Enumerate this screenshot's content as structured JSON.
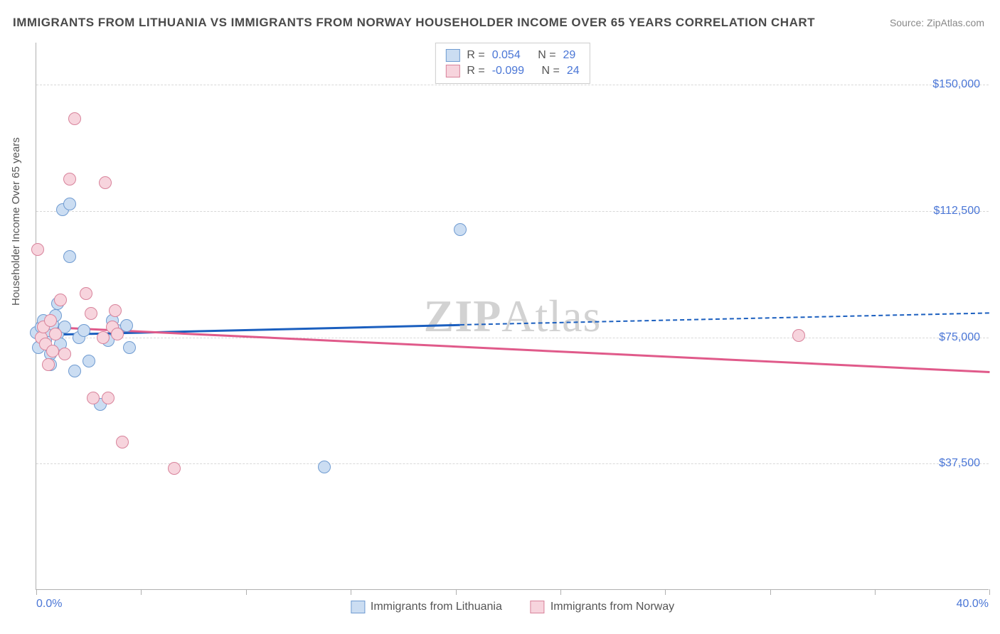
{
  "title": "IMMIGRANTS FROM LITHUANIA VS IMMIGRANTS FROM NORWAY HOUSEHOLDER INCOME OVER 65 YEARS CORRELATION CHART",
  "source_label": "Source:",
  "source_name": "ZipAtlas.com",
  "ylabel": "Householder Income Over 65 years",
  "watermark": "ZIPAtlas",
  "chart": {
    "type": "scatter",
    "xlim": [
      0,
      40
    ],
    "ylim": [
      0,
      162500
    ],
    "x_unit": "%",
    "y_unit": "$",
    "background_color": "#ffffff",
    "grid_color": "#d8d8d8",
    "axis_color": "#b0b0b0",
    "point_radius": 9,
    "xlim_labels": [
      "0.0%",
      "40.0%"
    ],
    "ytick_values": [
      37500,
      75000,
      112500,
      150000
    ],
    "ytick_labels": [
      "$37,500",
      "$75,000",
      "$112,500",
      "$150,000"
    ],
    "xtick_positions": [
      0,
      4.4,
      8.8,
      13.2,
      17.6,
      22.0,
      26.4,
      30.8,
      35.2,
      40.0
    ]
  },
  "series": [
    {
      "id": "lithuania",
      "label": "Immigrants from Lithuania",
      "fill_color": "#cbddf2",
      "stroke_color": "#6f9bd1",
      "trend_color": "#1b5fbf",
      "R": "0.054",
      "N": "29",
      "trend": {
        "x1": 0,
        "y1": 76000,
        "x2": 17.8,
        "y2": 79000,
        "dash_x2": 40,
        "dash_y2": 82500
      },
      "points": [
        [
          0.0,
          76500
        ],
        [
          0.1,
          72000
        ],
        [
          0.2,
          78000
        ],
        [
          0.3,
          80000
        ],
        [
          0.4,
          74000
        ],
        [
          0.5,
          77000
        ],
        [
          0.6,
          70000
        ],
        [
          0.7,
          79000
        ],
        [
          0.8,
          81500
        ],
        [
          0.6,
          67000
        ],
        [
          0.9,
          76000
        ],
        [
          1.0,
          73000
        ],
        [
          1.2,
          78000
        ],
        [
          1.1,
          113000
        ],
        [
          1.4,
          114500
        ],
        [
          1.4,
          99000
        ],
        [
          0.9,
          85000
        ],
        [
          1.6,
          65000
        ],
        [
          1.8,
          75000
        ],
        [
          2.0,
          77000
        ],
        [
          2.2,
          68000
        ],
        [
          2.7,
          55000
        ],
        [
          3.0,
          74000
        ],
        [
          3.2,
          80000
        ],
        [
          3.4,
          77000
        ],
        [
          3.8,
          78500
        ],
        [
          3.9,
          72000
        ],
        [
          17.8,
          107000
        ],
        [
          12.1,
          36500
        ]
      ]
    },
    {
      "id": "norway",
      "label": "Immigrants from Norway",
      "fill_color": "#f7d4dd",
      "stroke_color": "#d8839b",
      "trend_color": "#e05a8a",
      "R": "-0.099",
      "N": "24",
      "trend": {
        "x1": 0,
        "y1": 78500,
        "x2": 40,
        "y2": 65000
      },
      "points": [
        [
          0.05,
          101000
        ],
        [
          0.2,
          75000
        ],
        [
          0.3,
          78000
        ],
        [
          0.4,
          73000
        ],
        [
          0.5,
          67000
        ],
        [
          0.6,
          80000
        ],
        [
          0.7,
          71000
        ],
        [
          0.8,
          76000
        ],
        [
          1.0,
          86000
        ],
        [
          1.2,
          70000
        ],
        [
          1.4,
          122000
        ],
        [
          1.6,
          140000
        ],
        [
          2.1,
          88000
        ],
        [
          2.3,
          82000
        ],
        [
          2.4,
          57000
        ],
        [
          2.8,
          75000
        ],
        [
          2.9,
          121000
        ],
        [
          3.0,
          57000
        ],
        [
          3.2,
          78000
        ],
        [
          3.3,
          83000
        ],
        [
          3.4,
          76000
        ],
        [
          3.6,
          44000
        ],
        [
          5.8,
          36000
        ],
        [
          32.0,
          75500
        ]
      ]
    }
  ],
  "legend_stats": {
    "R_label": "R =",
    "N_label": "N ="
  }
}
